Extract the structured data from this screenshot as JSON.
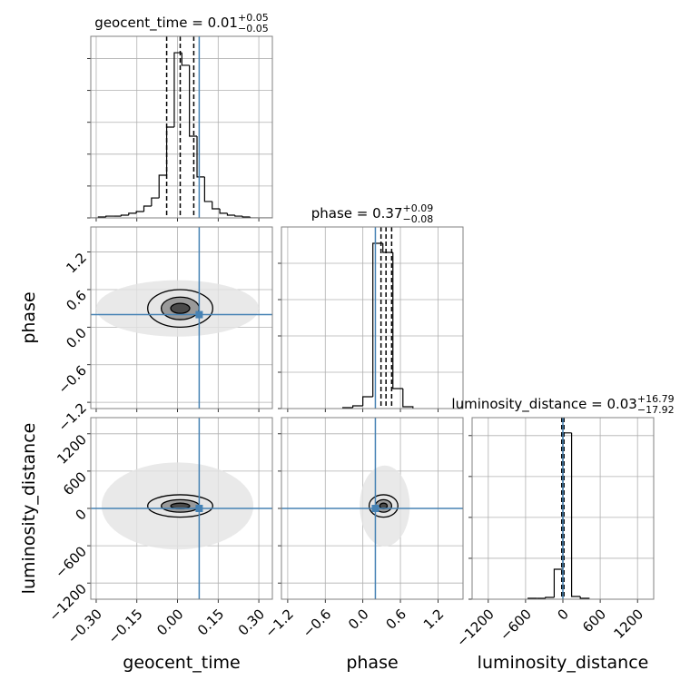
{
  "chart_data": [
    {
      "type": "histogram",
      "title": "geocent_time = 0.01",
      "title_sup": "+0.05",
      "title_sub": "−0.05",
      "bins": [
        -0.32,
        -0.292,
        -0.264,
        -0.236,
        -0.208,
        -0.18,
        -0.152,
        -0.124,
        -0.096,
        -0.068,
        -0.04,
        -0.012,
        0.016,
        0.044,
        0.072,
        0.1,
        0.128,
        0.156,
        0.184,
        0.212,
        0.24,
        0.268,
        0.296,
        0.324,
        0.352
      ],
      "values": [
        0,
        6,
        11,
        11,
        17,
        29,
        40,
        74,
        125,
        268,
        570,
        1037,
        958,
        513,
        257,
        103,
        57,
        29,
        17,
        11,
        6,
        0,
        0,
        0
      ],
      "quantiles": [
        -0.04,
        0.01,
        0.06
      ],
      "truth": 0.08,
      "xlim": [
        -0.32,
        0.35
      ],
      "xticks": [
        -0.3,
        -0.15,
        0,
        0.15,
        0.3
      ],
      "ylim": [
        0,
        1140
      ],
      "yticks": [
        0,
        200,
        400,
        600,
        800,
        1000
      ],
      "color": "#000000",
      "truth_color": "#4682b4",
      "grid": true
    },
    {
      "type": "contour",
      "ylabel": "phase",
      "cloud": [
        0.0,
        0.3,
        0.3,
        0.45
      ],
      "cloud_color": "#e4e4e4",
      "contours": [
        [
          0.01,
          0.3,
          0.12,
          0.3
        ],
        [
          0.01,
          0.3,
          0.07,
          0.18
        ],
        [
          0.01,
          0.3,
          0.035,
          0.08
        ]
      ],
      "colors": [
        "#e6e6e6",
        "#9a9a9a",
        "#4a4a4a"
      ],
      "truth": [
        0.08,
        0.2
      ],
      "xlim": [
        -0.32,
        0.35
      ],
      "xticks": [
        -0.3,
        -0.15,
        0,
        0.15,
        0.3
      ],
      "ylim": [
        -1.3,
        1.6
      ],
      "yticks": [
        {
          "value": -1.2,
          "label": "−1.2"
        },
        {
          "value": -0.6,
          "label": "−0.6"
        },
        {
          "value": 0,
          "label": "0.0"
        },
        0.6,
        1.2
      ],
      "color": "#000000",
      "truth_color": "#4682b4",
      "grid": true
    },
    {
      "type": "histogram",
      "title": "phase = 0.37",
      "title_sup": "+0.09",
      "title_sub": "−0.08",
      "bins": [
        -0.32,
        -0.16,
        0,
        0.16,
        0.32,
        0.48,
        0.64,
        0.8
      ],
      "values": [
        25,
        75,
        325,
        4550,
        4300,
        550,
        50
      ],
      "quantiles": [
        0.29,
        0.37,
        0.46
      ],
      "truth": 0.2,
      "xlim": [
        -1.3,
        1.6
      ],
      "xticks": [
        -1.2,
        -0.6,
        0,
        0.6,
        1.2
      ],
      "ylim": [
        0,
        5000
      ],
      "yticks": [
        0,
        1000,
        2000,
        3000,
        4000
      ],
      "color": "#000000",
      "truth_color": "#4682b4",
      "grid": true
    },
    {
      "type": "contour",
      "xlabel": "geocent_time",
      "ylabel": "luminosity_distance",
      "cloud": [
        0.0,
        40,
        0.28,
        700
      ],
      "cloud_color": "#e4e4e4",
      "contours": [
        [
          0.01,
          40,
          0.12,
          180
        ],
        [
          0.01,
          40,
          0.07,
          100
        ],
        [
          0.01,
          40,
          0.035,
          45
        ]
      ],
      "colors": [
        "#e6e6e6",
        "#9a9a9a",
        "#4a4a4a"
      ],
      "truth": [
        0.08,
        0
      ],
      "xlim": [
        -0.32,
        0.35
      ],
      "xticks": [
        {
          "value": -0.3,
          "label": "−0.30"
        },
        {
          "value": -0.15,
          "label": "−0.15"
        },
        {
          "value": 0,
          "label": "0.00"
        },
        0.15,
        {
          "value": 0.3,
          "label": "0.30"
        }
      ],
      "ylim": [
        -1460,
        1460
      ],
      "yticks": [
        {
          "value": -1200,
          "label": "−1200"
        },
        {
          "value": -600,
          "label": "−600"
        },
        0,
        600,
        1200
      ],
      "color": "#000000",
      "truth_color": "#4682b4",
      "grid": true
    },
    {
      "type": "contour",
      "xlabel": "phase",
      "cloud": [
        0.35,
        40,
        0.4,
        650
      ],
      "cloud_color": "#e4e4e4",
      "contours": [
        [
          0.33,
          40,
          0.23,
          180
        ],
        [
          0.33,
          40,
          0.13,
          100
        ],
        [
          0.33,
          40,
          0.06,
          45
        ]
      ],
      "colors": [
        "#e6e6e6",
        "#9a9a9a",
        "#4a4a4a"
      ],
      "truth": [
        0.2,
        0
      ],
      "xlim": [
        -1.3,
        1.6
      ],
      "xticks": [
        {
          "value": -1.2,
          "label": "−1.2"
        },
        {
          "value": -0.6,
          "label": "−0.6"
        },
        {
          "value": 0,
          "label": "0.0"
        },
        0.6,
        1.2
      ],
      "ylim": [
        -1460,
        1460
      ],
      "yticks": [
        -1200,
        -600,
        0,
        600,
        1200
      ],
      "color": "#000000",
      "truth_color": "#4682b4",
      "grid": true
    },
    {
      "type": "histogram",
      "title": "luminosity_distance = 0.03",
      "title_sup": "+16.79",
      "title_sub": "−17.92",
      "xlabel": "luminosity_distance",
      "bins": [
        -560,
        -420,
        -280,
        -140,
        0,
        140,
        280,
        420
      ],
      "values": [
        22,
        22,
        44,
        733,
        4067,
        67,
        22
      ],
      "quantiles": [
        -17.89,
        0.03,
        16.82
      ],
      "truth": 0,
      "xlim": [
        -1460,
        1460
      ],
      "xticks": [
        {
          "value": -1200,
          "label": "−1200"
        },
        {
          "value": -600,
          "label": "−600"
        },
        0,
        600,
        1200
      ],
      "ylim": [
        0,
        4440
      ],
      "yticks": [
        0,
        1000,
        2000,
        3000,
        4000
      ],
      "color": "#000000",
      "truth_color": "#4682b4",
      "grid": true
    }
  ]
}
